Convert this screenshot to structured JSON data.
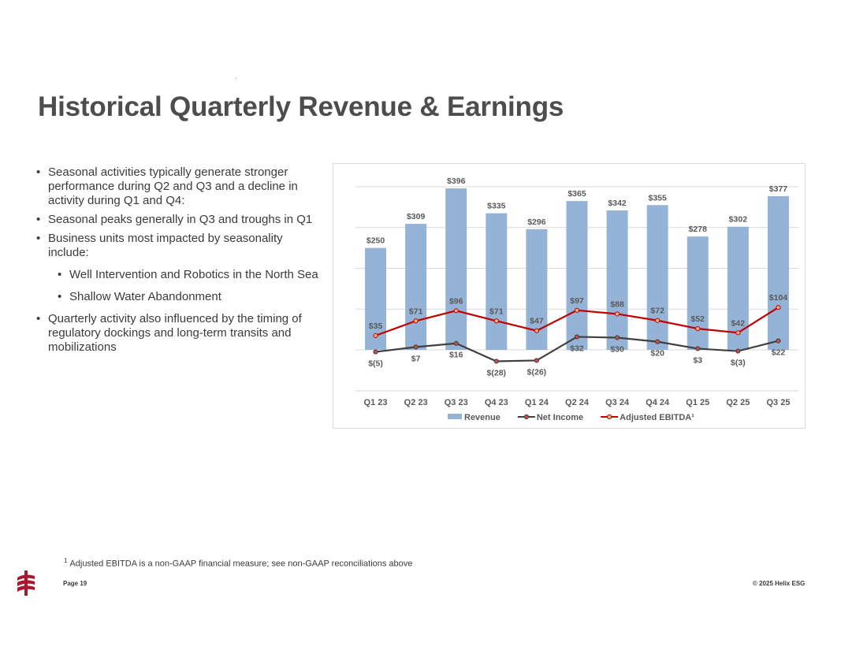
{
  "slide": {
    "title": "Historical Quarterly Revenue & Earnings",
    "bullets": [
      {
        "text": "Seasonal activities typically generate stronger performance during Q2 and Q3 and a decline in activity during Q1 and Q4:",
        "level": 1
      },
      {
        "text": "Seasonal peaks generally in Q3 and troughs in Q1",
        "level": 1
      },
      {
        "text": "Business units most impacted by seasonality include:",
        "level": 1
      },
      {
        "text": "Well Intervention and Robotics in the North Sea",
        "level": 2
      },
      {
        "text": "Shallow Water Abandonment",
        "level": 2
      },
      {
        "text": "Quarterly activity also influenced by the timing of regulatory dockings and long-term transits and mobilizations",
        "level": 1
      }
    ],
    "footnote_marker": "1",
    "footnote": "Adjusted EBITDA is a non-GAAP financial measure; see non-GAAP reconciliations above",
    "page_label": "Page 19",
    "copyright": "© 2025 Helix ESG"
  },
  "chart_data": {
    "type": "bar",
    "title": "",
    "xlabel": "",
    "ylabel": "",
    "ylim": [
      -50,
      400
    ],
    "gridlines": true,
    "legend_position": "bottom",
    "categories": [
      "Q1 23",
      "Q2 23",
      "Q3 23",
      "Q4 23",
      "Q1 24",
      "Q2 24",
      "Q3 24",
      "Q4 24",
      "Q1 25",
      "Q2 25",
      "Q3 25"
    ],
    "series": [
      {
        "name": "Revenue",
        "kind": "bar",
        "color": "#95b3d7",
        "values": [
          250,
          309,
          396,
          335,
          296,
          365,
          342,
          355,
          278,
          302,
          377
        ],
        "labels": [
          "$250",
          "$309",
          "$396",
          "$335",
          "$296",
          "$365",
          "$342",
          "$355",
          "$278",
          "$302",
          "$377"
        ]
      },
      {
        "name": "Net Income",
        "kind": "line",
        "color": "#404040",
        "marker_fill": "#c0504d",
        "values": [
          -5,
          7,
          16,
          -28,
          -26,
          32,
          30,
          20,
          3,
          -3,
          22
        ],
        "labels": [
          "$(5)",
          "$7",
          "$16",
          "$(28)",
          "$(26)",
          "$32",
          "$30",
          "$20",
          "$3",
          "$(3)",
          "$22"
        ]
      },
      {
        "name": "Adjusted EBITDA¹",
        "kind": "line",
        "color": "#c00000",
        "marker_fill": "#f4b183",
        "values": [
          35,
          71,
          96,
          71,
          47,
          97,
          88,
          72,
          52,
          42,
          104
        ],
        "labels": [
          "$35",
          "$71",
          "$96",
          "$71",
          "$47",
          "$97",
          "$88",
          "$72",
          "$52",
          "$42",
          "$104"
        ]
      }
    ]
  }
}
